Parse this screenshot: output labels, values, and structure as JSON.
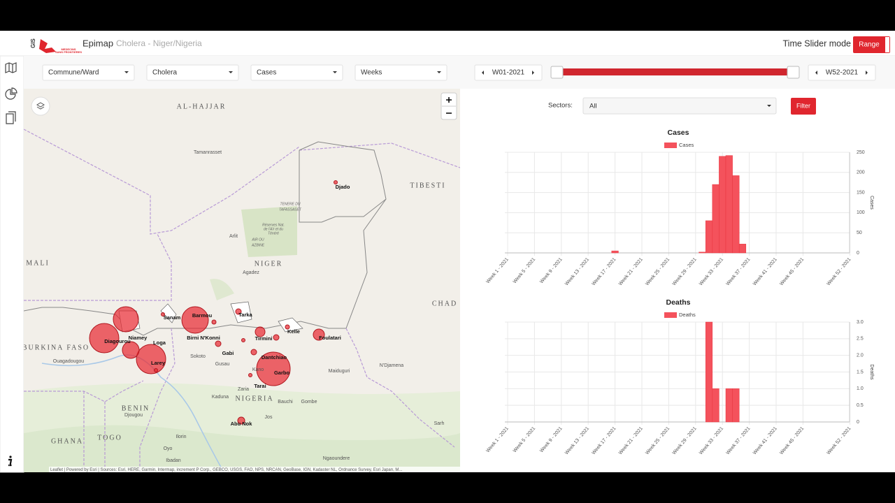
{
  "header": {
    "logo_gis": "GIS",
    "logo_line1": "MEDECINS",
    "logo_line2": "SANS FRONTIERES",
    "app": "Epimap",
    "project": "Cholera - Niger/Nigeria",
    "mode_label": "Time Slider mode",
    "mode_button": "Range"
  },
  "toolbar": {
    "level": "Commune/Ward",
    "disease": "Cholera",
    "indicator": "Cases",
    "period": "Weeks",
    "start": "W01-2021",
    "end": "W52-2021"
  },
  "map": {
    "labels": [
      "AL-HAJJAR",
      "Tamanrasset",
      "Djado",
      "TIBESTI",
      "TENERE DU",
      "TAFASSASET",
      "Réserves Nat.",
      "de l'Aïr et du",
      "Ténéré",
      "Arlit",
      "AIR OU",
      "AZBINE",
      "MALI",
      "NIGER",
      "Agadez",
      "CHAD",
      "Tarka",
      "Sanam",
      "Barmou",
      "Diagourou",
      "Niamey",
      "Loga",
      "BURKINA FASO",
      "Birni N'Konni",
      "Tirmini",
      "Kelle",
      "Foulatari",
      "Gabi",
      "Dantchiao",
      "Larey",
      "Ouagadougou",
      "Sokoto",
      "Gusau",
      "Kano",
      "Garbo",
      "Maiduguri",
      "N'Djamena",
      "Tarai",
      "Zaria",
      "NIGERIA",
      "Kaduna",
      "Bauchi",
      "Gombe",
      "BENIN",
      "Djougou",
      "Jos",
      "Abu Nok",
      "TOGO",
      "GHANA",
      "Ilorin",
      "Oyo",
      "Ibadan",
      "Ngaoundere",
      "Sarh"
    ],
    "attribution": "Leaflet | Powered by Esri | Sources: Esri, HERE, Garmin, Intermap, increment P Corp., GEBCO, USGS, FAO, NPS, NRCAN, GeoBase, IGN, Kadaster NL, Ordnance Survey, Esri Japan, M..."
  },
  "filter": {
    "label": "Sectors:",
    "value": "All",
    "button": "Filter"
  },
  "chart_data": [
    {
      "type": "bar",
      "title": "Cases",
      "y_label": "Cases",
      "legend_position": "top",
      "y_axis_side": "right",
      "grid": true,
      "categories": [
        "Week 1 - 2021",
        null,
        null,
        null,
        "Week 5 - 2021",
        null,
        null,
        null,
        "Week 9 - 2021",
        null,
        null,
        null,
        "Week 13 - 2021",
        null,
        null,
        null,
        "Week 17 - 2021",
        null,
        null,
        null,
        "Week 21 - 2021",
        null,
        null,
        null,
        "Week 25 - 2021",
        null,
        null,
        null,
        "Week 29 - 2021",
        null,
        null,
        null,
        "Week 33 - 2021",
        null,
        null,
        null,
        "Week 37 - 2021",
        null,
        null,
        null,
        "Week 41 - 2021",
        null,
        null,
        null,
        "Week 45 - 2021",
        null,
        null,
        null,
        null,
        null,
        null,
        "Week 52 - 2021"
      ],
      "series": [
        {
          "name": "Cases",
          "color": "#f4525c",
          "values": [
            0,
            0,
            0,
            0,
            0,
            0,
            0,
            0,
            0,
            0,
            0,
            0,
            0,
            0,
            0,
            0,
            5,
            0,
            0,
            0,
            0,
            0,
            0,
            0,
            0,
            0,
            0,
            0,
            0,
            2,
            80,
            170,
            240,
            242,
            192,
            22,
            0,
            0,
            0,
            0,
            0,
            0,
            0,
            0,
            0,
            0,
            0,
            0,
            0,
            0,
            0,
            0
          ]
        }
      ],
      "ylim": [
        0,
        250
      ],
      "yticks": [
        0,
        50,
        100,
        150,
        200,
        250
      ]
    },
    {
      "type": "bar",
      "title": "Deaths",
      "y_label": "Deaths",
      "legend_position": "top",
      "y_axis_side": "right",
      "grid": true,
      "categories": [
        "Week 1 - 2021",
        null,
        null,
        null,
        "Week 5 - 2021",
        null,
        null,
        null,
        "Week 9 - 2021",
        null,
        null,
        null,
        "Week 13 - 2021",
        null,
        null,
        null,
        "Week 17 - 2021",
        null,
        null,
        null,
        "Week 21 - 2021",
        null,
        null,
        null,
        "Week 25 - 2021",
        null,
        null,
        null,
        "Week 29 - 2021",
        null,
        null,
        null,
        "Week 33 - 2021",
        null,
        null,
        null,
        "Week 37 - 2021",
        null,
        null,
        null,
        "Week 41 - 2021",
        null,
        null,
        null,
        "Week 45 - 2021",
        null,
        null,
        null,
        null,
        null,
        null,
        "Week 52 - 2021"
      ],
      "series": [
        {
          "name": "Deaths",
          "color": "#f4525c",
          "values": [
            0,
            0,
            0,
            0,
            0,
            0,
            0,
            0,
            0,
            0,
            0,
            0,
            0,
            0,
            0,
            0,
            0,
            0,
            0,
            0,
            0,
            0,
            0,
            0,
            0,
            0,
            0,
            0,
            0,
            0,
            3,
            1,
            0,
            1,
            1,
            0,
            0,
            0,
            0,
            0,
            0,
            0,
            0,
            0,
            0,
            0,
            0,
            0,
            0,
            0,
            0,
            0
          ]
        }
      ],
      "ylim": [
        0,
        3
      ],
      "yticks": [
        0,
        0.5,
        {
          "value": 1,
          "label": "1.0"
        },
        1.5,
        {
          "value": 2,
          "label": "2.0"
        },
        2.5,
        {
          "value": 3,
          "label": "3.0"
        }
      ]
    }
  ]
}
